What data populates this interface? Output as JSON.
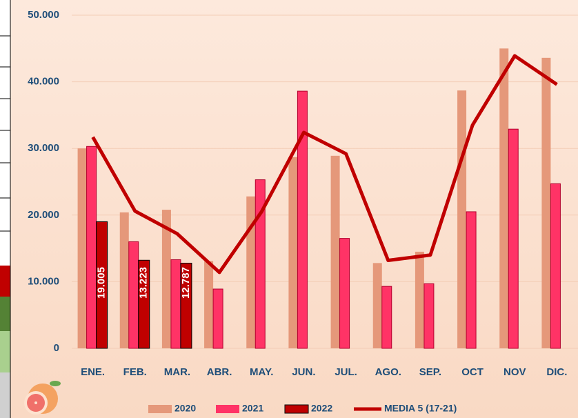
{
  "chart_data": {
    "type": "bar",
    "categories": [
      "ENE.",
      "FEB.",
      "MAR.",
      "ABR.",
      "MAY.",
      "JUN.",
      "JUL.",
      "AGO.",
      "SEP.",
      "OCT",
      "NOV",
      "DIC."
    ],
    "series": [
      {
        "name": "2020",
        "color": "#e5987a",
        "values": [
          30000,
          20400,
          20800,
          13100,
          22800,
          28700,
          28900,
          12800,
          14500,
          38700,
          45000,
          43600
        ]
      },
      {
        "name": "2021",
        "color": "#ff3366",
        "values": [
          30300,
          16000,
          13300,
          8900,
          25300,
          38600,
          16500,
          9300,
          9700,
          20500,
          32900,
          24700
        ]
      },
      {
        "name": "2022",
        "color": "#c00000",
        "values": [
          19005,
          13223,
          12787,
          null,
          null,
          null,
          null,
          null,
          null,
          null,
          null,
          null
        ],
        "value_labels": [
          "19.005",
          "13.223",
          "12.787",
          null,
          null,
          null,
          null,
          null,
          null,
          null,
          null,
          null
        ]
      },
      {
        "name": "MEDIA 5 (17-21)",
        "color": "#c00000",
        "type": "line",
        "values": [
          31700,
          20600,
          17200,
          11400,
          20500,
          32400,
          29200,
          13200,
          14000,
          33500,
          43900,
          39600
        ]
      }
    ],
    "ylim": [
      0,
      50000
    ],
    "yticks": [
      0,
      {
        "value": 10000,
        "label": "10.000"
      },
      {
        "value": 20000,
        "label": "20.000"
      },
      {
        "value": 30000,
        "label": "30.000"
      },
      {
        "value": 40000,
        "label": "40.000"
      },
      {
        "value": 50000,
        "label": "50.000"
      }
    ],
    "grid": true
  }
}
